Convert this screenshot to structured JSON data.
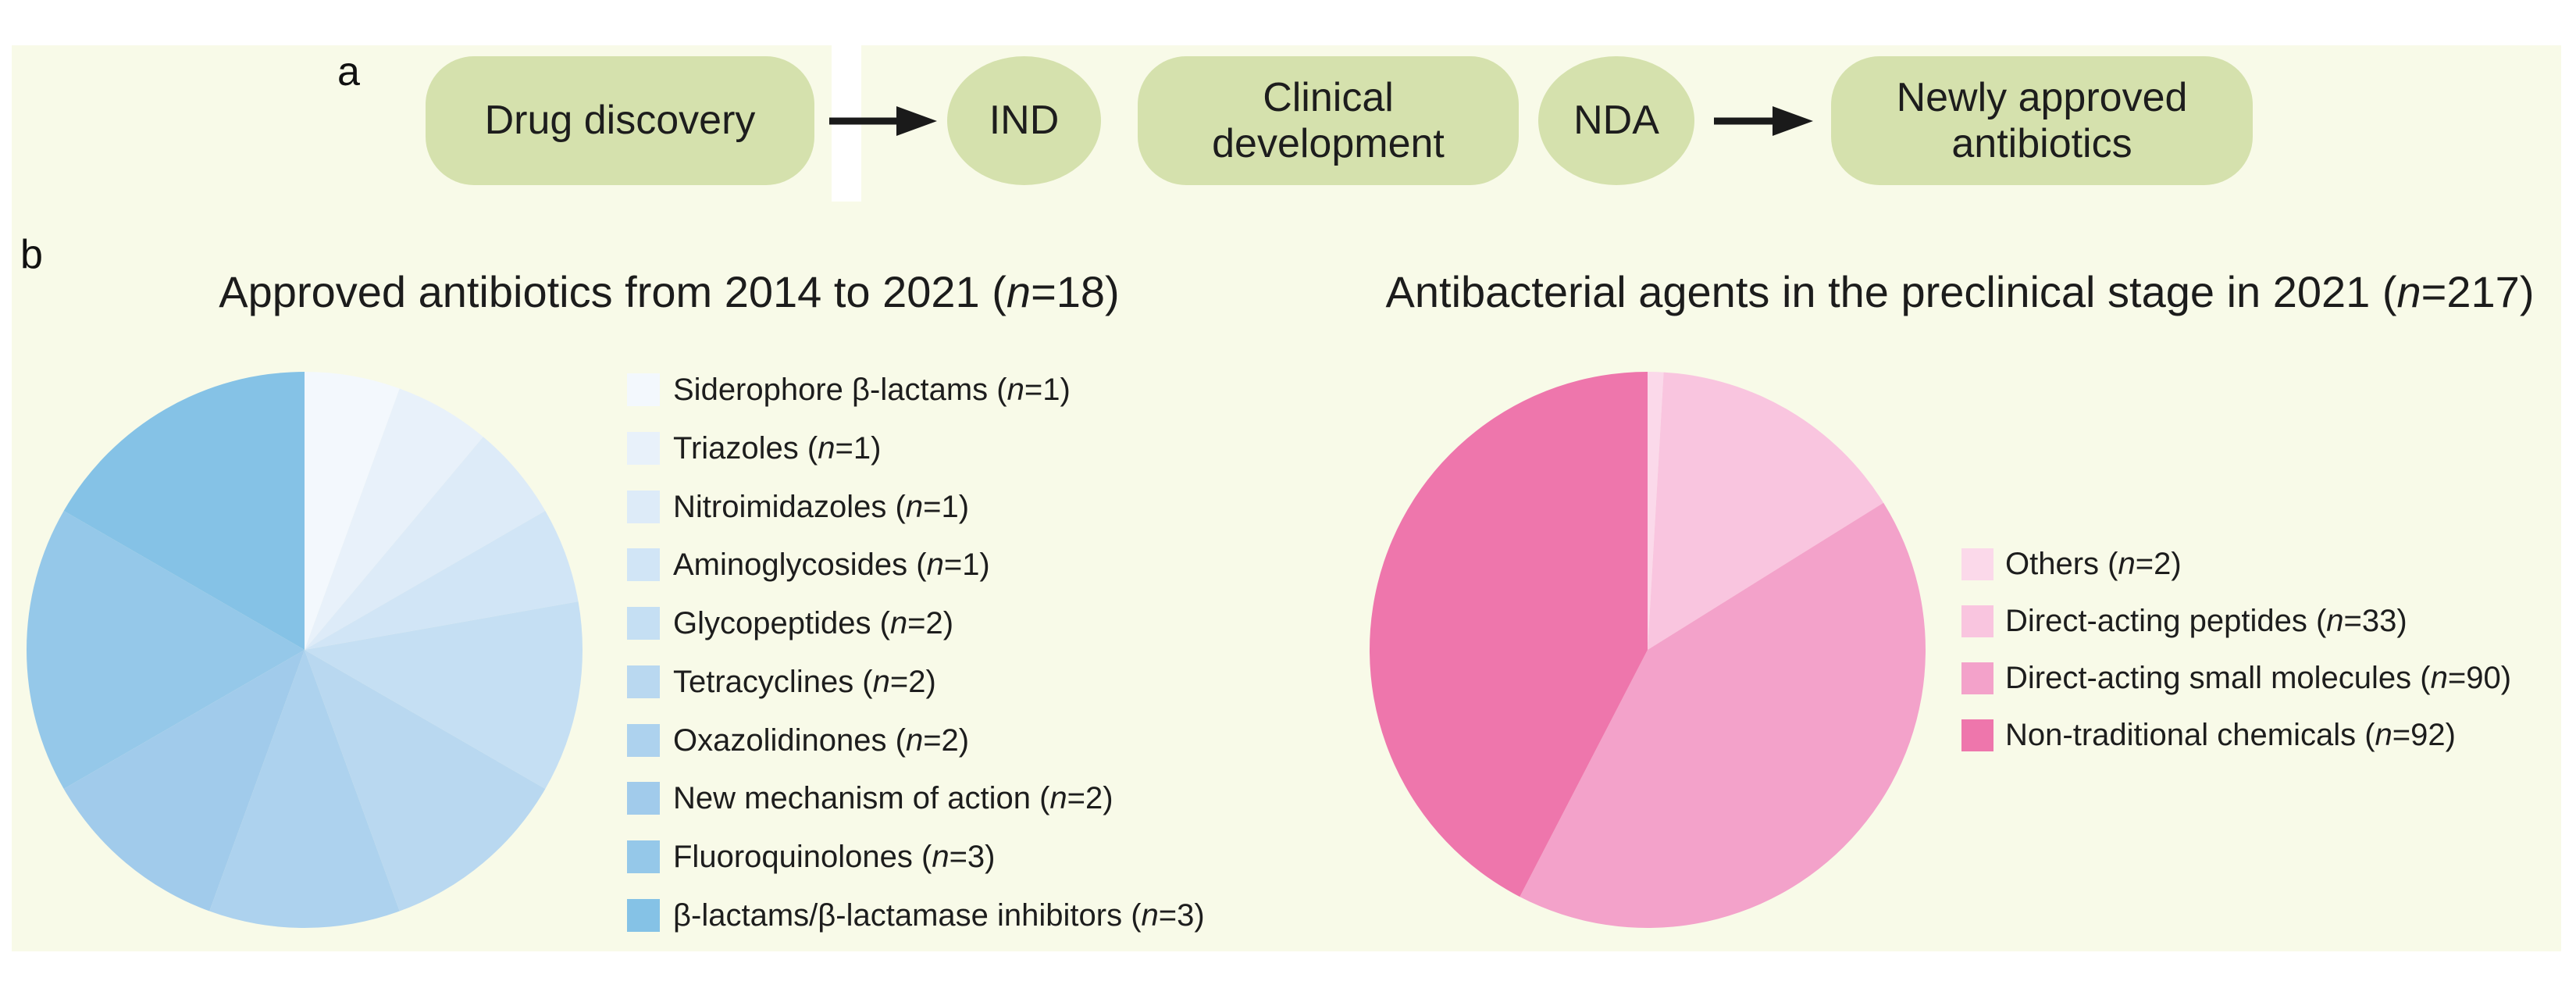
{
  "figure": {
    "background_color": "#f8fae8",
    "page_color": "#ffffff",
    "text_color": "#1d1d1d"
  },
  "panel_a": {
    "letter": "a",
    "node_fill_color": "#d5e1ad",
    "arrow_color": "#1a1a1a",
    "nodes": [
      {
        "label": "Drug discovery",
        "shape": "pill"
      },
      {
        "label": "IND",
        "shape": "oval"
      },
      {
        "label": "Clinical\ndevelopment",
        "shape": "pill"
      },
      {
        "label": "NDA",
        "shape": "oval"
      },
      {
        "label": "Newly approved\nantibiotics",
        "shape": "pill"
      }
    ],
    "arrows": [
      {
        "from": "Drug discovery",
        "to": "IND"
      },
      {
        "from": "NDA",
        "to": "Newly approved antibiotics"
      }
    ]
  },
  "panel_b": {
    "letter": "b"
  },
  "chart_data": [
    {
      "type": "pie",
      "title": "Approved antibiotics from 2014 to 2021",
      "title_n": 18,
      "start_angle_deg": 0,
      "direction": "clockwise",
      "legend_position": "right",
      "categories": [
        "Siderophore β-lactams",
        "Triazoles",
        "Nitroimidazoles",
        "Aminoglycosides",
        "Glycopeptides",
        "Tetracyclines",
        "Oxazolidinones",
        "New mechanism of action",
        "Fluoroquinolones",
        "β-lactams/β-lactamase inhibitors"
      ],
      "values": [
        1,
        1,
        1,
        1,
        2,
        2,
        2,
        2,
        3,
        3
      ],
      "total": 18,
      "colors": [
        "#f3f8fd",
        "#e8f1fa",
        "#ddebf8",
        "#d1e5f6",
        "#c5dff3",
        "#b9d8f0",
        "#add2ee",
        "#a1cbeb",
        "#95c8e9",
        "#85c2e6"
      ]
    },
    {
      "type": "pie",
      "title": "Antibacterial agents in the preclinical stage in 2021",
      "title_n": 217,
      "start_angle_deg": 0,
      "direction": "clockwise",
      "legend_position": "right",
      "categories": [
        "Others",
        "Direct-acting peptides",
        "Direct-acting small molecules",
        "Non-traditional chemicals"
      ],
      "values": [
        2,
        33,
        90,
        92
      ],
      "total": 217,
      "colors": [
        "#fbd9ea",
        "#f9c5df",
        "#f3a2ca",
        "#ee76ac"
      ]
    }
  ]
}
